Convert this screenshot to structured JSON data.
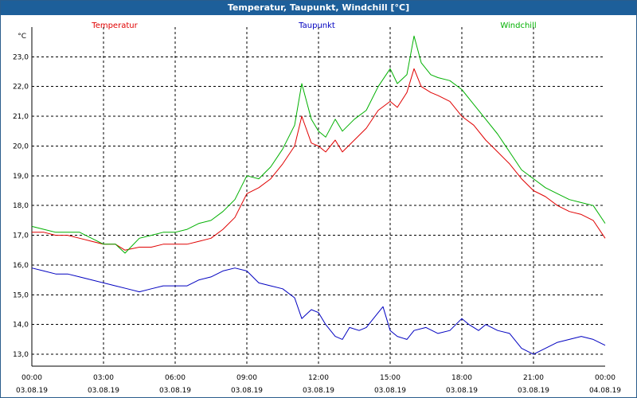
{
  "chart_data": {
    "type": "line",
    "title": "Temperatur, Taupunkt, Windchill [°C]",
    "ylabel": "°C",
    "xlabel": "",
    "ylim": [
      12.6,
      24.0
    ],
    "xlim": [
      0,
      24
    ],
    "grid": true,
    "y_ticks": [
      {
        "value": 13,
        "label": "13,0"
      },
      {
        "value": 14,
        "label": "14,0"
      },
      {
        "value": 15,
        "label": "15,0"
      },
      {
        "value": 16,
        "label": "16,0"
      },
      {
        "value": 17,
        "label": "17,0"
      },
      {
        "value": 18,
        "label": "18,0"
      },
      {
        "value": 19,
        "label": "19,0"
      },
      {
        "value": 20,
        "label": "20,0"
      },
      {
        "value": 21,
        "label": "21,0"
      },
      {
        "value": 22,
        "label": "22,0"
      },
      {
        "value": 23,
        "label": "23,0"
      }
    ],
    "x_ticks": [
      {
        "value": 0,
        "time": "00:00",
        "date": "03.08.19"
      },
      {
        "value": 3,
        "time": "03:00",
        "date": "03.08.19"
      },
      {
        "value": 6,
        "time": "06:00",
        "date": "03.08.19"
      },
      {
        "value": 9,
        "time": "09:00",
        "date": "03.08.19"
      },
      {
        "value": 12,
        "time": "12:00",
        "date": "03.08.19"
      },
      {
        "value": 15,
        "time": "15:00",
        "date": "03.08.19"
      },
      {
        "value": 18,
        "time": "18:00",
        "date": "03.08.19"
      },
      {
        "value": 21,
        "time": "21:00",
        "date": "03.08.19"
      },
      {
        "value": 24,
        "time": "00:00",
        "date": "04.08.19"
      }
    ],
    "series": [
      {
        "name": "Temperatur",
        "color": "#e00000",
        "x": [
          0,
          0.5,
          1,
          1.5,
          2,
          2.5,
          3,
          3.5,
          3.9,
          4.5,
          5,
          5.5,
          6,
          6.5,
          7,
          7.5,
          8,
          8.5,
          9,
          9.5,
          10,
          10.5,
          11,
          11.3,
          11.7,
          12,
          12.3,
          12.7,
          13,
          13.5,
          14,
          14.5,
          15,
          15.3,
          15.7,
          16,
          16.3,
          16.7,
          17,
          17.5,
          18,
          18.5,
          19,
          19.5,
          20,
          20.5,
          21,
          21.5,
          22,
          22.5,
          23,
          23.5,
          24
        ],
        "values": [
          17.1,
          17.1,
          17.0,
          17.0,
          16.9,
          16.8,
          16.7,
          16.7,
          16.5,
          16.6,
          16.6,
          16.7,
          16.7,
          16.7,
          16.8,
          16.9,
          17.2,
          17.6,
          18.4,
          18.6,
          18.9,
          19.4,
          20.0,
          21.0,
          20.1,
          20.0,
          19.8,
          20.2,
          19.8,
          20.2,
          20.6,
          21.2,
          21.5,
          21.3,
          21.8,
          22.6,
          22.0,
          21.8,
          21.7,
          21.5,
          21.0,
          20.7,
          20.2,
          19.8,
          19.4,
          18.9,
          18.5,
          18.3,
          18.0,
          17.8,
          17.7,
          17.5,
          16.9
        ]
      },
      {
        "name": "Taupunkt",
        "color": "#0000c0",
        "x": [
          0,
          0.5,
          1,
          1.5,
          2,
          2.5,
          3,
          3.5,
          4,
          4.5,
          5,
          5.5,
          6,
          6.5,
          7,
          7.5,
          8,
          8.5,
          9,
          9.5,
          10,
          10.5,
          11,
          11.3,
          11.7,
          12,
          12.3,
          12.7,
          13,
          13.3,
          13.7,
          14,
          14.5,
          14.7,
          15,
          15.3,
          15.7,
          16,
          16.5,
          17,
          17.5,
          18,
          18.3,
          18.7,
          19,
          19.5,
          20,
          20.5,
          21,
          21.5,
          22,
          22.5,
          23,
          23.5,
          24
        ],
        "values": [
          15.9,
          15.8,
          15.7,
          15.7,
          15.6,
          15.5,
          15.4,
          15.3,
          15.2,
          15.1,
          15.2,
          15.3,
          15.3,
          15.3,
          15.5,
          15.6,
          15.8,
          15.9,
          15.8,
          15.4,
          15.3,
          15.2,
          14.9,
          14.2,
          14.5,
          14.4,
          14.0,
          13.6,
          13.5,
          13.9,
          13.8,
          13.9,
          14.4,
          14.6,
          13.8,
          13.6,
          13.5,
          13.8,
          13.9,
          13.7,
          13.8,
          14.2,
          14.0,
          13.8,
          14.0,
          13.8,
          13.7,
          13.2,
          13.0,
          13.2,
          13.4,
          13.5,
          13.6,
          13.5,
          13.3
        ]
      },
      {
        "name": "Windchill",
        "color": "#00b000",
        "x": [
          0,
          0.5,
          1,
          1.5,
          2,
          2.5,
          3,
          3.5,
          3.9,
          4.5,
          5,
          5.5,
          6,
          6.5,
          7,
          7.5,
          8,
          8.5,
          9,
          9.5,
          10,
          10.5,
          11,
          11.3,
          11.7,
          12,
          12.3,
          12.7,
          13,
          13.5,
          14,
          14.5,
          15,
          15.3,
          15.7,
          16,
          16.3,
          16.7,
          17,
          17.5,
          18,
          18.5,
          19,
          19.5,
          20,
          20.5,
          21,
          21.5,
          22,
          22.5,
          23,
          23.5,
          24
        ],
        "values": [
          17.3,
          17.2,
          17.1,
          17.1,
          17.1,
          16.9,
          16.7,
          16.7,
          16.4,
          16.9,
          17.0,
          17.1,
          17.1,
          17.2,
          17.4,
          17.5,
          17.8,
          18.2,
          19.0,
          18.9,
          19.3,
          19.9,
          20.7,
          22.1,
          20.9,
          20.5,
          20.3,
          20.9,
          20.5,
          20.9,
          21.2,
          22.0,
          22.6,
          22.1,
          22.4,
          23.7,
          22.8,
          22.4,
          22.3,
          22.2,
          21.9,
          21.4,
          20.9,
          20.4,
          19.8,
          19.2,
          18.9,
          18.6,
          18.4,
          18.2,
          18.1,
          18.0,
          17.4
        ]
      }
    ]
  }
}
